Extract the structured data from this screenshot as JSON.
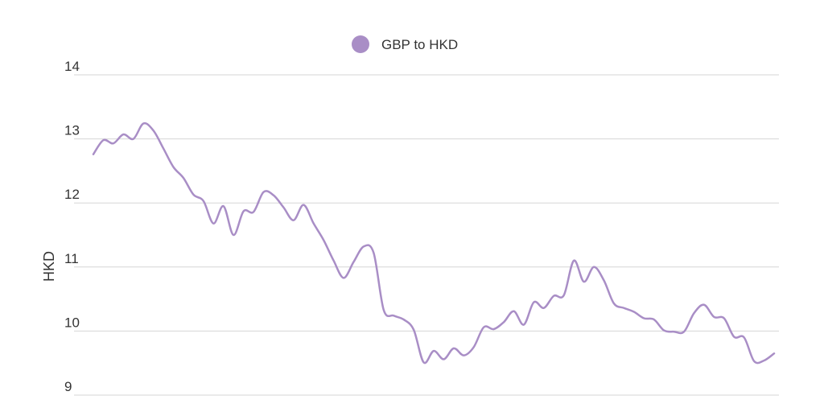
{
  "chart_data": {
    "type": "line",
    "ylabel": "HKD",
    "xlabel": "",
    "ylim": [
      9,
      14
    ],
    "yticks": [
      9,
      10,
      11,
      12,
      13,
      14
    ],
    "grid": true,
    "legend_position": "top-center",
    "series": [
      {
        "name": "GBP to HKD",
        "color": "#a98ec6",
        "values": [
          12.76,
          12.98,
          12.93,
          13.07,
          13.0,
          13.24,
          13.13,
          12.85,
          12.56,
          12.39,
          12.13,
          12.03,
          11.68,
          11.95,
          11.5,
          11.87,
          11.86,
          12.17,
          12.12,
          11.93,
          11.73,
          11.97,
          11.68,
          11.42,
          11.1,
          10.83,
          11.08,
          11.32,
          11.22,
          10.33,
          10.24,
          10.18,
          10.02,
          9.51,
          9.69,
          9.56,
          9.73,
          9.62,
          9.75,
          10.06,
          10.03,
          10.14,
          10.31,
          10.1,
          10.45,
          10.36,
          10.55,
          10.56,
          11.1,
          10.77,
          11.0,
          10.79,
          10.43,
          10.36,
          10.3,
          10.2,
          10.18,
          10.01,
          9.99,
          9.99,
          10.28,
          10.41,
          10.22,
          10.2,
          9.91,
          9.9,
          9.53,
          9.54,
          9.65
        ]
      }
    ]
  }
}
